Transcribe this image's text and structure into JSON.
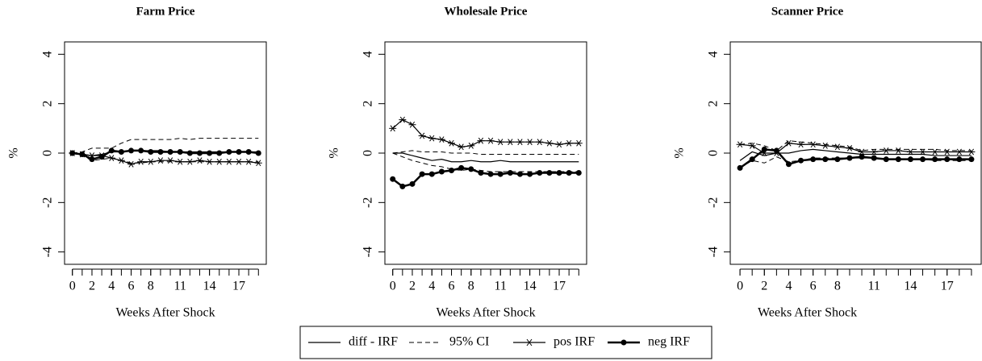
{
  "chart_data": [
    {
      "type": "line",
      "title": "Farm Price",
      "xlabel": "Weeks After Shock",
      "ylabel": "%",
      "x": [
        0,
        1,
        2,
        3,
        4,
        5,
        6,
        7,
        8,
        9,
        10,
        11,
        12,
        13,
        14,
        15,
        16,
        17,
        18,
        19
      ],
      "xlim": [
        -0.8,
        19.8
      ],
      "xticks": [
        0,
        2,
        4,
        6,
        8,
        11,
        14,
        17
      ],
      "xminorticks": [
        0,
        1,
        2,
        3,
        4,
        5,
        6,
        7,
        8,
        9,
        10,
        11,
        12,
        13,
        14,
        15,
        16,
        17,
        18,
        19
      ],
      "ylim": [
        -4.5,
        4.5
      ],
      "yticks": [
        4,
        2,
        0,
        -2,
        -4
      ],
      "series": [
        {
          "style": "solid",
          "values": [
            0,
            -0.05,
            -0.1,
            -0.05,
            0.05,
            0.05,
            0.1,
            0.1,
            0.1,
            0.1,
            0.05,
            0.05,
            0.05,
            0.05,
            0.05,
            0.05,
            0.05,
            0.05,
            0.05,
            0.05
          ]
        },
        {
          "style": "dashed",
          "values": [
            0,
            0.05,
            0.2,
            0.2,
            0.2,
            0.4,
            0.55,
            0.55,
            0.55,
            0.55,
            0.55,
            0.6,
            0.55,
            0.6,
            0.6,
            0.6,
            0.6,
            0.6,
            0.6,
            0.6
          ]
        },
        {
          "style": "dashed",
          "values": [
            0,
            -0.1,
            -0.3,
            -0.25,
            -0.2,
            -0.3,
            -0.4,
            -0.4,
            -0.35,
            -0.35,
            -0.35,
            -0.35,
            -0.35,
            -0.35,
            -0.35,
            -0.35,
            -0.35,
            -0.35,
            -0.35,
            -0.35
          ]
        },
        {
          "style": "star",
          "values": [
            0,
            -0.05,
            -0.1,
            -0.1,
            -0.2,
            -0.3,
            -0.45,
            -0.35,
            -0.35,
            -0.3,
            -0.3,
            -0.35,
            -0.35,
            -0.3,
            -0.35,
            -0.35,
            -0.35,
            -0.35,
            -0.35,
            -0.4
          ]
        },
        {
          "style": "dot",
          "values": [
            0,
            -0.05,
            -0.25,
            -0.15,
            0.1,
            0.05,
            0.1,
            0.1,
            0.05,
            0.05,
            0.05,
            0.05,
            0,
            0,
            0,
            0,
            0.05,
            0.05,
            0.05,
            0
          ]
        }
      ]
    },
    {
      "type": "line",
      "title": "Wholesale Price",
      "xlabel": "Weeks After Shock",
      "ylabel": "%",
      "x": [
        0,
        1,
        2,
        3,
        4,
        5,
        6,
        7,
        8,
        9,
        10,
        11,
        12,
        13,
        14,
        15,
        16,
        17,
        18,
        19
      ],
      "xlim": [
        -0.8,
        19.8
      ],
      "xticks": [
        0,
        2,
        4,
        6,
        8,
        11,
        14,
        17
      ],
      "xminorticks": [
        0,
        1,
        2,
        3,
        4,
        5,
        6,
        7,
        8,
        9,
        10,
        11,
        12,
        13,
        14,
        15,
        16,
        17,
        18,
        19
      ],
      "ylim": [
        -4.5,
        4.5
      ],
      "yticks": [
        4,
        2,
        0,
        -2,
        -4
      ],
      "series": [
        {
          "style": "solid",
          "values": [
            0,
            0,
            -0.1,
            -0.2,
            -0.3,
            -0.25,
            -0.35,
            -0.35,
            -0.3,
            -0.35,
            -0.35,
            -0.3,
            -0.35,
            -0.35,
            -0.35,
            -0.35,
            -0.35,
            -0.35,
            -0.35,
            -0.35
          ]
        },
        {
          "style": "dashed",
          "values": [
            0,
            0.05,
            0.1,
            0.05,
            0.05,
            0.05,
            0,
            0,
            0,
            -0.05,
            -0.05,
            -0.05,
            -0.05,
            -0.05,
            -0.05,
            -0.05,
            -0.05,
            -0.05,
            -0.05,
            -0.05
          ]
        },
        {
          "style": "dashed",
          "values": [
            0,
            -0.15,
            -0.3,
            -0.4,
            -0.5,
            -0.55,
            -0.65,
            -0.7,
            -0.65,
            -0.7,
            -0.75,
            -0.75,
            -0.75,
            -0.75,
            -0.75,
            -0.75,
            -0.75,
            -0.75,
            -0.75,
            -0.75
          ]
        },
        {
          "style": "star",
          "values": [
            1.0,
            1.35,
            1.15,
            0.7,
            0.6,
            0.55,
            0.4,
            0.25,
            0.3,
            0.5,
            0.5,
            0.45,
            0.45,
            0.45,
            0.45,
            0.45,
            0.4,
            0.35,
            0.4,
            0.4
          ]
        },
        {
          "style": "dot",
          "values": [
            -1.05,
            -1.35,
            -1.25,
            -0.85,
            -0.85,
            -0.75,
            -0.7,
            -0.6,
            -0.65,
            -0.8,
            -0.85,
            -0.85,
            -0.8,
            -0.85,
            -0.85,
            -0.8,
            -0.8,
            -0.8,
            -0.8,
            -0.8
          ]
        }
      ]
    },
    {
      "type": "line",
      "title": "Scanner Price",
      "xlabel": "Weeks After Shock",
      "ylabel": "%",
      "x": [
        0,
        1,
        2,
        3,
        4,
        5,
        6,
        7,
        8,
        9,
        10,
        11,
        12,
        13,
        14,
        15,
        16,
        17,
        18,
        19
      ],
      "xlim": [
        -0.8,
        19.8
      ],
      "xticks": [
        0,
        2,
        4,
        6,
        8,
        11,
        14,
        17
      ],
      "xminorticks": [
        0,
        1,
        2,
        3,
        4,
        5,
        6,
        7,
        8,
        9,
        10,
        11,
        12,
        13,
        14,
        15,
        16,
        17,
        18,
        19
      ],
      "ylim": [
        -4.5,
        4.5
      ],
      "yticks": [
        4,
        2,
        0,
        -2,
        -4
      ],
      "series": [
        {
          "style": "solid",
          "values": [
            -0.3,
            0.05,
            -0.1,
            0,
            0,
            0.1,
            0.15,
            0.1,
            0.05,
            0,
            -0.05,
            -0.05,
            -0.05,
            -0.05,
            -0.05,
            -0.05,
            -0.1,
            -0.1,
            -0.1,
            -0.1
          ]
        },
        {
          "style": "dashed",
          "values": [
            0.35,
            0.4,
            0.3,
            0.1,
            0.5,
            0.45,
            0.4,
            0.35,
            0.3,
            0.25,
            0.1,
            0.15,
            0.15,
            0.15,
            0.15,
            0.15,
            0.15,
            0.1,
            0.1,
            0.1
          ]
        },
        {
          "style": "dashed",
          "values": [
            -0.6,
            -0.3,
            -0.4,
            -0.15,
            -0.35,
            -0.3,
            -0.2,
            -0.2,
            -0.2,
            -0.2,
            -0.2,
            -0.2,
            -0.25,
            -0.25,
            -0.25,
            -0.25,
            -0.3,
            -0.3,
            -0.3,
            -0.3
          ]
        },
        {
          "style": "star",
          "values": [
            0.35,
            0.3,
            0,
            0,
            0.4,
            0.35,
            0.35,
            0.3,
            0.25,
            0.2,
            0.05,
            0.05,
            0.1,
            0.1,
            0.05,
            0.05,
            0.05,
            0.05,
            0.05,
            0.05
          ]
        },
        {
          "style": "dot",
          "values": [
            -0.6,
            -0.25,
            0.15,
            0.1,
            -0.45,
            -0.3,
            -0.25,
            -0.25,
            -0.25,
            -0.2,
            -0.15,
            -0.2,
            -0.25,
            -0.25,
            -0.25,
            -0.25,
            -0.25,
            -0.25,
            -0.25,
            -0.25
          ]
        }
      ]
    }
  ],
  "legend": [
    {
      "label": "diff - IRF",
      "style": "solid"
    },
    {
      "label": "95% CI",
      "style": "dashed"
    },
    {
      "label": "pos IRF",
      "style": "star"
    },
    {
      "label": "neg IRF",
      "style": "dot"
    }
  ]
}
